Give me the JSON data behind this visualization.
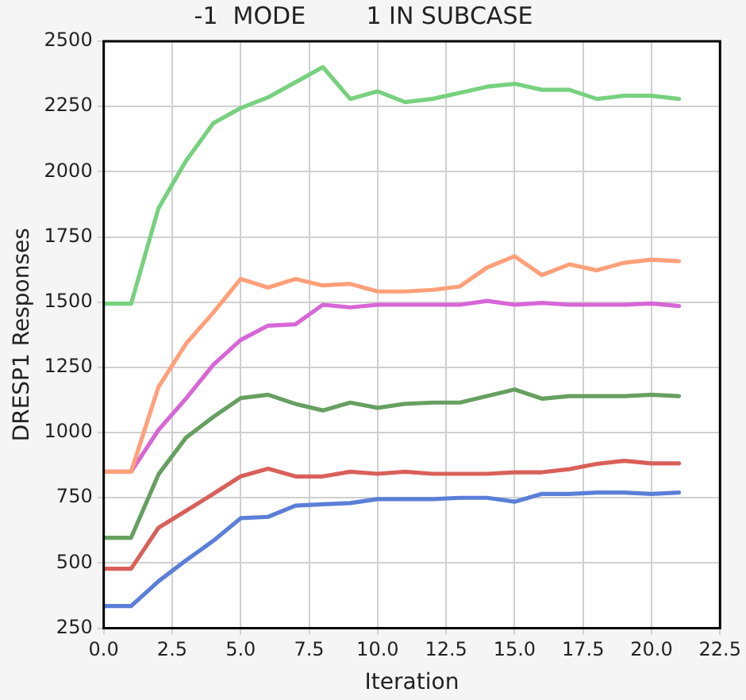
{
  "chart_data": {
    "type": "line",
    "title": "-1  MODE        1 IN SUBCASE",
    "xlabel": "Iteration",
    "ylabel": "DRESP1 Responses",
    "x": [
      0,
      1,
      2,
      3,
      4,
      5,
      6,
      7,
      8,
      9,
      10,
      11,
      12,
      13,
      14,
      15,
      16,
      17,
      18,
      19,
      20,
      21
    ],
    "series": [
      {
        "color": "#77d17f",
        "values": [
          1494,
          1494,
          1860,
          2041,
          2186,
          2244,
          2285,
          2343,
          2401,
          2279,
          2308,
          2267,
          2279,
          2302,
          2326,
          2337,
          2314,
          2314,
          2279,
          2291,
          2291,
          2279
        ]
      },
      {
        "color": "#ffa07a",
        "values": [
          850,
          850,
          1175,
          1340,
          1460,
          1589,
          1556,
          1589,
          1564,
          1570,
          1541,
          1541,
          1547,
          1560,
          1633,
          1676,
          1604,
          1645,
          1622,
          1651,
          1663,
          1657
        ]
      },
      {
        "color": "#d766d7",
        "values": [
          850,
          850,
          1010,
          1130,
          1260,
          1355,
          1410,
          1415,
          1490,
          1480,
          1490,
          1490,
          1490,
          1490,
          1505,
          1490,
          1497,
          1490,
          1490,
          1490,
          1495,
          1485
        ]
      },
      {
        "color": "#66a061",
        "values": [
          597,
          597,
          840,
          980,
          1060,
          1132,
          1145,
          1110,
          1085,
          1115,
          1095,
          1110,
          1115,
          1115,
          1140,
          1165,
          1130,
          1140,
          1140,
          1140,
          1145,
          1140
        ]
      },
      {
        "color": "#d9605a",
        "values": [
          478,
          478,
          635,
          700,
          765,
          832,
          862,
          832,
          832,
          850,
          842,
          850,
          842,
          842,
          842,
          848,
          848,
          860,
          880,
          892,
          882,
          882
        ]
      },
      {
        "color": "#5b7fd8",
        "values": [
          335,
          335,
          430,
          510,
          585,
          672,
          677,
          720,
          725,
          730,
          745,
          745,
          745,
          750,
          750,
          735,
          765,
          765,
          770,
          770,
          765,
          770
        ]
      }
    ],
    "xlim": [
      0,
      22.5
    ],
    "xticks": [
      {
        "value": 0,
        "label": "0.0"
      },
      {
        "value": 2.5,
        "label": "2.5"
      },
      {
        "value": 5,
        "label": "5.0"
      },
      {
        "value": 7.5,
        "label": "7.5"
      },
      {
        "value": 10,
        "label": "10.0"
      },
      {
        "value": 12.5,
        "label": "12.5"
      },
      {
        "value": 15,
        "label": "15.0"
      },
      {
        "value": 17.5,
        "label": "17.5"
      },
      {
        "value": 20,
        "label": "20.0"
      },
      {
        "value": 22.5,
        "label": "22.5"
      }
    ],
    "ylim": [
      250,
      2500
    ],
    "yticks": [
      250,
      500,
      750,
      1000,
      1250,
      1500,
      1750,
      2000,
      2250,
      2500
    ],
    "grid": true,
    "legend": false,
    "marker": "none",
    "line_style": "solid"
  }
}
